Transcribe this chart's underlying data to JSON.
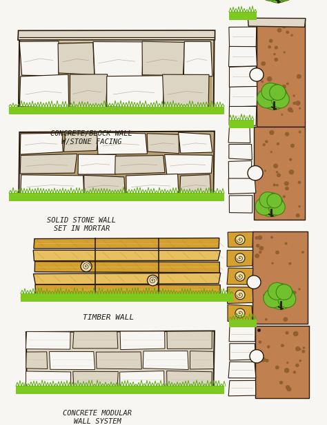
{
  "bg_color": "#f8f6f2",
  "labels": [
    "CONCRETE/BLOCK WALL\nW/STONE FACING",
    "SOLID STONE WALL\nSET IN MORTAR",
    "TIMBER WALL",
    "CONCRETE MODULAR\nWALL SYSTEM"
  ],
  "grass_color": "#7dc920",
  "grass_dark": "#5aaa10",
  "stone_light": "#ddd5c4",
  "stone_mid": "#c5b8a4",
  "stone_tan": "#b8a070",
  "stone_dark": "#8a7860",
  "timber_yellow": "#d4a030",
  "timber_light": "#e8c060",
  "timber_grain": "#b07820",
  "soil_color": "#c08050",
  "soil_dark": "#906030",
  "outline_color": "#2a1a08",
  "tree_green": "#70c030",
  "tree_dark": "#408010",
  "label_color": "#1a1a10",
  "white": "#f8f6f2",
  "cap_color": "#e0d8c8"
}
